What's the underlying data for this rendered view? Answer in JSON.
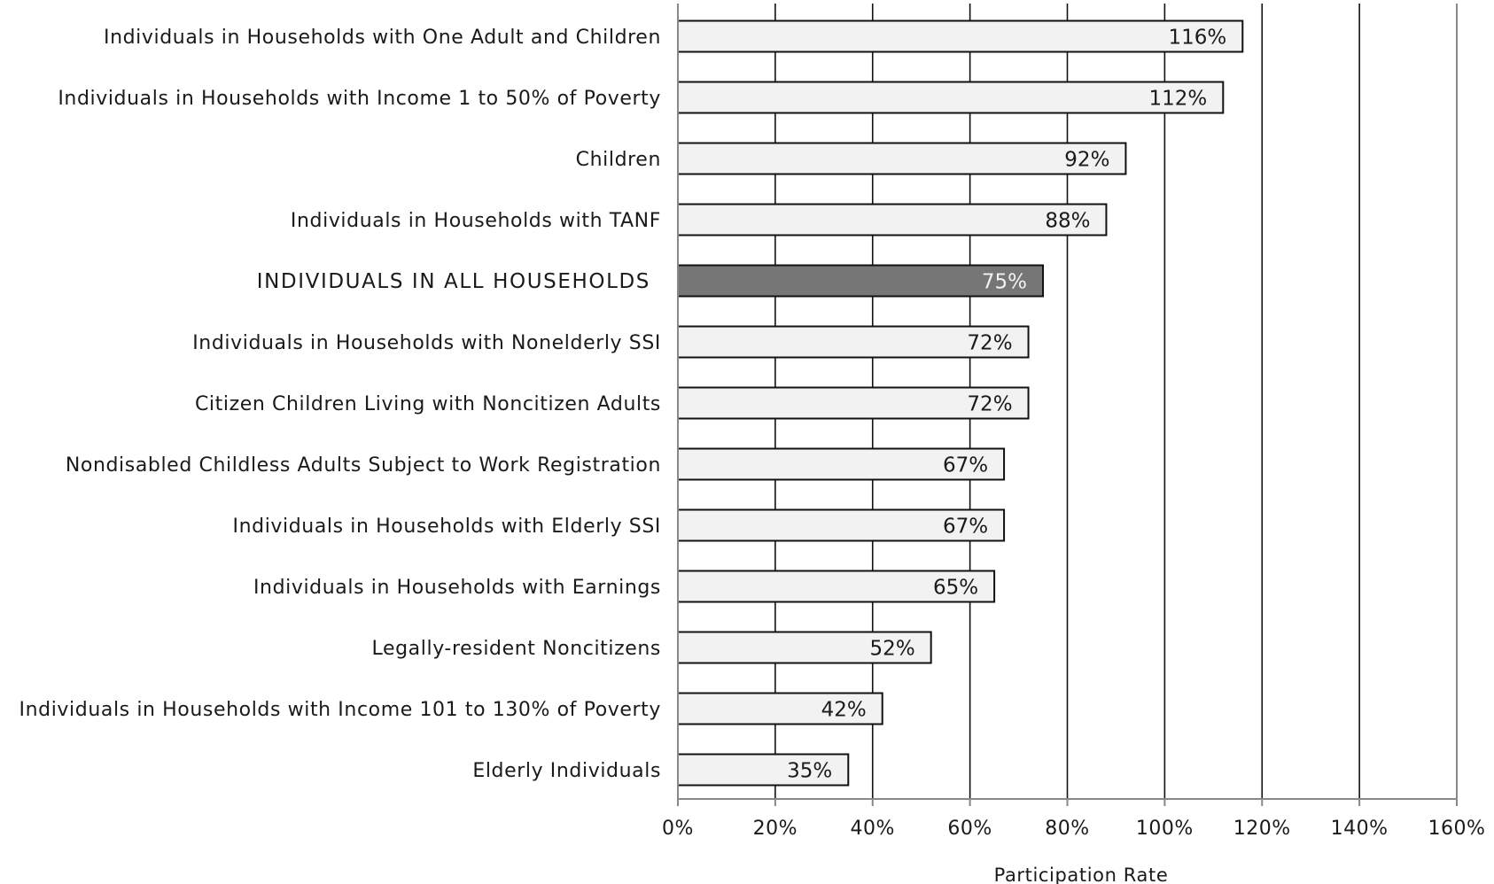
{
  "chart_data": {
    "type": "bar",
    "orientation": "horizontal",
    "categories": [
      "Individuals in Households with One Adult and Children",
      "Individuals in Households with Income 1 to 50% of Poverty",
      "Children",
      "Individuals in Households with TANF",
      "INDIVIDUALS IN ALL HOUSEHOLDS",
      "Individuals in Households with Nonelderly SSI",
      "Citizen Children Living with Noncitizen Adults",
      "Nondisabled Childless Adults Subject to Work Registration",
      "Individuals in Households with Elderly SSI",
      "Individuals in Households with Earnings",
      "Legally-resident Noncitizens",
      "Individuals in Households with Income 101 to 130% of Poverty",
      "Elderly Individuals"
    ],
    "values": [
      116,
      112,
      92,
      88,
      75,
      72,
      72,
      67,
      67,
      65,
      52,
      42,
      35
    ],
    "value_labels": [
      "116%",
      "112%",
      "92%",
      "88%",
      "75%",
      "72%",
      "72%",
      "67%",
      "67%",
      "65%",
      "52%",
      "42%",
      "35%"
    ],
    "highlight_index": 4,
    "xlabel": "Participation Rate",
    "xlim": [
      0,
      160
    ],
    "xticks": [
      0,
      20,
      40,
      60,
      80,
      100,
      120,
      140,
      160
    ],
    "xtick_labels": [
      "0%",
      "20%",
      "40%",
      "60%",
      "80%",
      "100%",
      "120%",
      "140%",
      "160%"
    ],
    "grid": "vertical",
    "legend": "none",
    "colors": {
      "bar": "#f2f2f2",
      "highlight_bar": "#767676",
      "bar_stroke": "#111111",
      "grid": "#111111",
      "axis": "#888888"
    }
  }
}
